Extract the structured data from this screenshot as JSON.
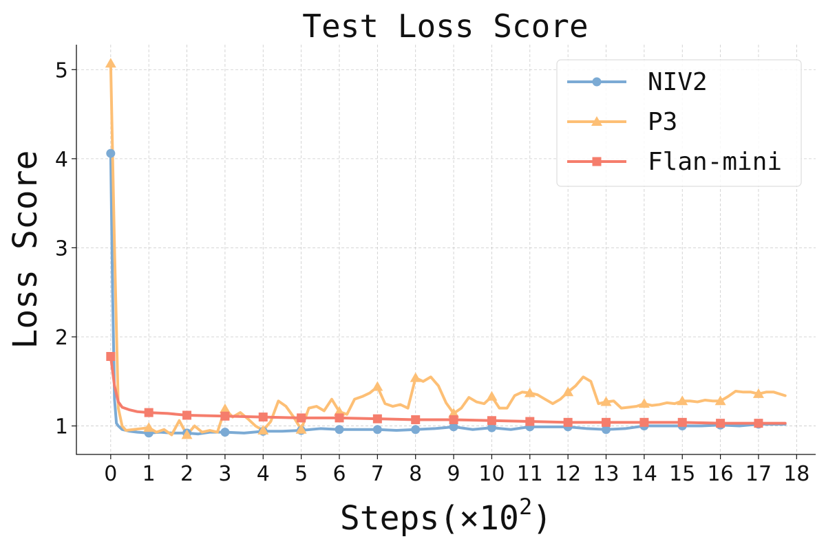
{
  "chart_data": {
    "type": "line",
    "title": "Test Loss Score",
    "xlabel": "Steps(×10",
    "xlabel_exponent": "2",
    "xlabel_suffix": ")",
    "ylabel": "Loss Score",
    "xlim": [
      -0.9,
      18.5
    ],
    "ylim": [
      0.68,
      5.28
    ],
    "x_ticks": [
      "0",
      "1",
      "2",
      "3",
      "4",
      "5",
      "6",
      "7",
      "8",
      "9",
      "10",
      "11",
      "12",
      "13",
      "14",
      "15",
      "16",
      "17",
      "18"
    ],
    "y_ticks": [
      "1",
      "2",
      "3",
      "4",
      "5"
    ],
    "grid": true,
    "legend_position": "top-right",
    "series": [
      {
        "name": "NIV2",
        "color": "#7baad4",
        "marker": "circle",
        "x": [
          0,
          0.05,
          0.1,
          0.15,
          0.2,
          0.3,
          0.5,
          0.7,
          1.0,
          1.3,
          1.6,
          2.0,
          2.3,
          2.6,
          3.0,
          3.5,
          4.0,
          4.5,
          5.0,
          5.5,
          6.0,
          6.5,
          7.0,
          7.5,
          8.0,
          8.5,
          9.0,
          9.5,
          10.0,
          10.5,
          11.0,
          11.5,
          12.0,
          12.5,
          13.0,
          13.5,
          14.0,
          14.5,
          15.0,
          15.5,
          16.0,
          16.5,
          17.0,
          17.7
        ],
        "y": [
          4.06,
          2.5,
          1.3,
          1.03,
          1.0,
          0.96,
          0.94,
          0.93,
          0.92,
          0.93,
          0.92,
          0.92,
          0.91,
          0.93,
          0.93,
          0.92,
          0.94,
          0.94,
          0.95,
          0.97,
          0.96,
          0.96,
          0.96,
          0.95,
          0.96,
          0.97,
          0.99,
          0.96,
          0.98,
          0.96,
          0.99,
          0.99,
          0.99,
          0.97,
          0.96,
          0.97,
          1.0,
          1.0,
          1.0,
          1.0,
          1.01,
          1.0,
          1.02,
          1.02
        ],
        "marker_x": [
          0,
          1,
          2,
          3,
          4,
          5,
          6,
          7,
          8,
          9,
          10,
          11,
          12,
          13,
          14,
          15,
          16,
          17
        ]
      },
      {
        "name": "P3",
        "color": "#fdbf75",
        "marker": "triangle",
        "x": [
          0,
          0.1,
          0.2,
          0.3,
          0.4,
          0.6,
          0.8,
          1.0,
          1.2,
          1.4,
          1.6,
          1.8,
          2.0,
          2.2,
          2.4,
          2.6,
          2.8,
          3.0,
          3.2,
          3.4,
          3.6,
          3.8,
          4.0,
          4.2,
          4.4,
          4.6,
          4.8,
          5.0,
          5.2,
          5.4,
          5.6,
          5.8,
          6.0,
          6.2,
          6.4,
          6.6,
          6.8,
          7.0,
          7.2,
          7.4,
          7.6,
          7.8,
          8.0,
          8.2,
          8.4,
          8.6,
          8.8,
          9.0,
          9.2,
          9.4,
          9.6,
          9.8,
          10.0,
          10.2,
          10.4,
          10.6,
          10.8,
          11.0,
          11.2,
          11.4,
          11.6,
          11.8,
          12.0,
          12.2,
          12.4,
          12.6,
          12.8,
          13.0,
          13.2,
          13.4,
          13.6,
          13.8,
          14.0,
          14.2,
          14.4,
          14.6,
          14.8,
          15.0,
          15.2,
          15.4,
          15.6,
          15.8,
          16.0,
          16.2,
          16.4,
          16.6,
          16.8,
          17.0,
          17.2,
          17.4,
          17.7
        ],
        "y": [
          5.07,
          3.0,
          1.2,
          1.0,
          0.95,
          0.96,
          0.97,
          0.98,
          0.93,
          0.96,
          0.9,
          1.06,
          0.9,
          1.0,
          0.93,
          0.95,
          0.93,
          1.19,
          1.1,
          1.15,
          1.08,
          1.0,
          0.95,
          1.05,
          1.28,
          1.22,
          1.1,
          0.96,
          1.2,
          1.22,
          1.17,
          1.3,
          1.16,
          1.13,
          1.3,
          1.33,
          1.37,
          1.44,
          1.25,
          1.22,
          1.24,
          1.2,
          1.54,
          1.5,
          1.55,
          1.45,
          1.26,
          1.14,
          1.2,
          1.32,
          1.27,
          1.25,
          1.33,
          1.2,
          1.2,
          1.34,
          1.38,
          1.37,
          1.35,
          1.3,
          1.25,
          1.3,
          1.38,
          1.45,
          1.55,
          1.5,
          1.25,
          1.27,
          1.28,
          1.2,
          1.21,
          1.22,
          1.25,
          1.23,
          1.24,
          1.26,
          1.25,
          1.28,
          1.28,
          1.27,
          1.29,
          1.28,
          1.28,
          1.33,
          1.39,
          1.38,
          1.38,
          1.36,
          1.38,
          1.38,
          1.34
        ],
        "marker_x": [
          0,
          1,
          2,
          3,
          4,
          5,
          6,
          7,
          8,
          9,
          10,
          11,
          12,
          13,
          14,
          15,
          16,
          17
        ]
      },
      {
        "name": "Flan-mini",
        "color": "#f57d6c",
        "marker": "square",
        "x": [
          0,
          0.1,
          0.2,
          0.3,
          0.5,
          0.7,
          1.0,
          1.5,
          2.0,
          3.0,
          4.0,
          5.0,
          6.0,
          7.0,
          8.0,
          9.0,
          10.0,
          11.0,
          12.0,
          13.0,
          14.0,
          15.0,
          16.0,
          17.0,
          17.7
        ],
        "y": [
          1.78,
          1.45,
          1.27,
          1.21,
          1.18,
          1.16,
          1.15,
          1.14,
          1.12,
          1.11,
          1.1,
          1.09,
          1.09,
          1.08,
          1.07,
          1.07,
          1.06,
          1.05,
          1.04,
          1.04,
          1.04,
          1.04,
          1.03,
          1.03,
          1.03
        ],
        "marker_x": [
          0,
          1,
          2,
          3,
          4,
          5,
          6,
          7,
          8,
          9,
          10,
          11,
          12,
          13,
          14,
          15,
          16,
          17
        ]
      }
    ]
  }
}
